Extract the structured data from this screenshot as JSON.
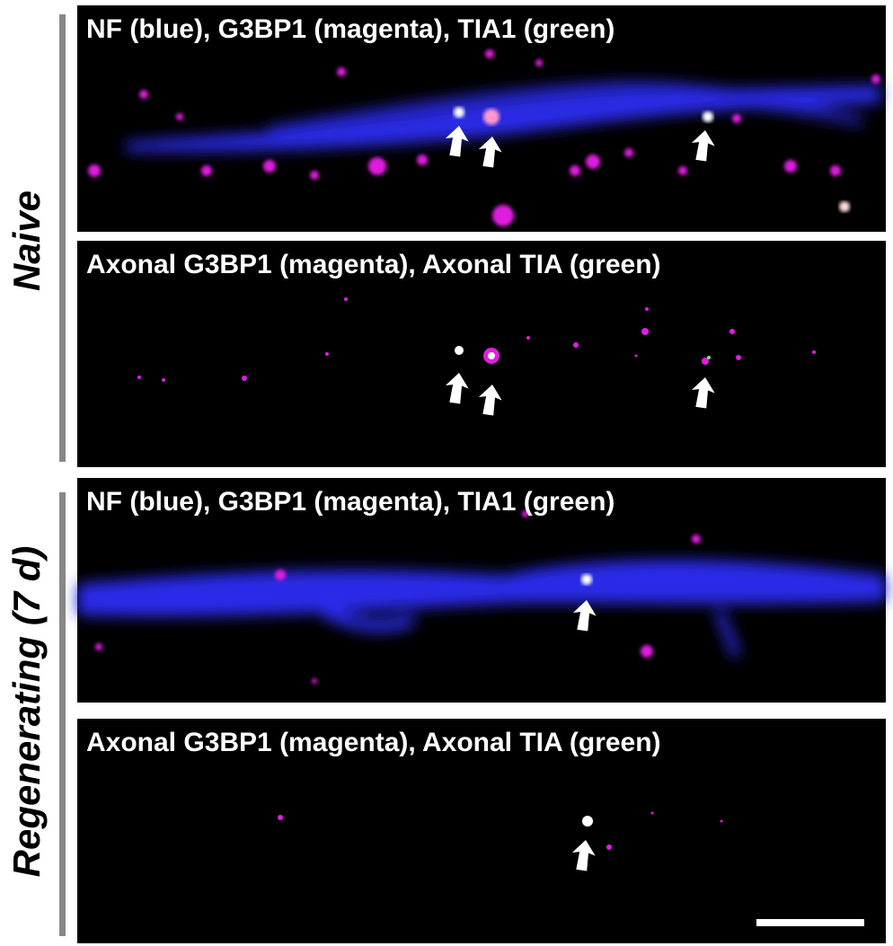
{
  "groups": [
    {
      "label": "Naive",
      "panels": [
        {
          "caption": "NF (blue), G3BP1 (magenta), TIA1 (green)"
        },
        {
          "caption": "Axonal G3BP1 (magenta), Axonal TIA (green)"
        }
      ]
    },
    {
      "label": "Regenerating (7 d)",
      "panels": [
        {
          "caption": "NF (blue), G3BP1 (magenta), TIA1 (green)"
        },
        {
          "caption": "Axonal G3BP1 (magenta), Axonal TIA (green)"
        }
      ]
    }
  ]
}
